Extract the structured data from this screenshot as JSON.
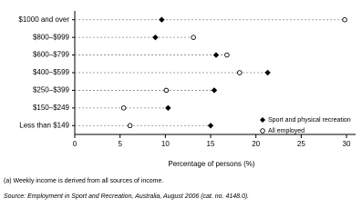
{
  "chart_data": {
    "type": "dotplot",
    "categories": [
      "$1000 and over",
      "$800–$999",
      "$600–$799",
      "$400–$599",
      "$250–$399",
      "$150–$249",
      "Less than $149"
    ],
    "series": [
      {
        "name": "Sport and physical recreation",
        "color": "#000000",
        "marker": "diamond",
        "values": [
          9.6,
          8.9,
          15.6,
          21.3,
          15.4,
          10.3,
          15.0
        ]
      },
      {
        "name": "All employed",
        "color": "#000000",
        "marker": "open-circle",
        "values": [
          29.8,
          13.1,
          16.8,
          18.2,
          10.1,
          5.4,
          6.1
        ]
      }
    ],
    "xlim": [
      0,
      30
    ],
    "xticks": [
      0,
      5,
      10,
      15,
      20,
      25,
      30
    ],
    "x_label": "Percentage of persons (%)",
    "legend": "lower right",
    "footnote": "(a) Weekly income is derived from all sources of income.",
    "source": "Source: Employment in Sport and Recreation, Australia, August 2006 (cat. no. 4148.0)."
  }
}
